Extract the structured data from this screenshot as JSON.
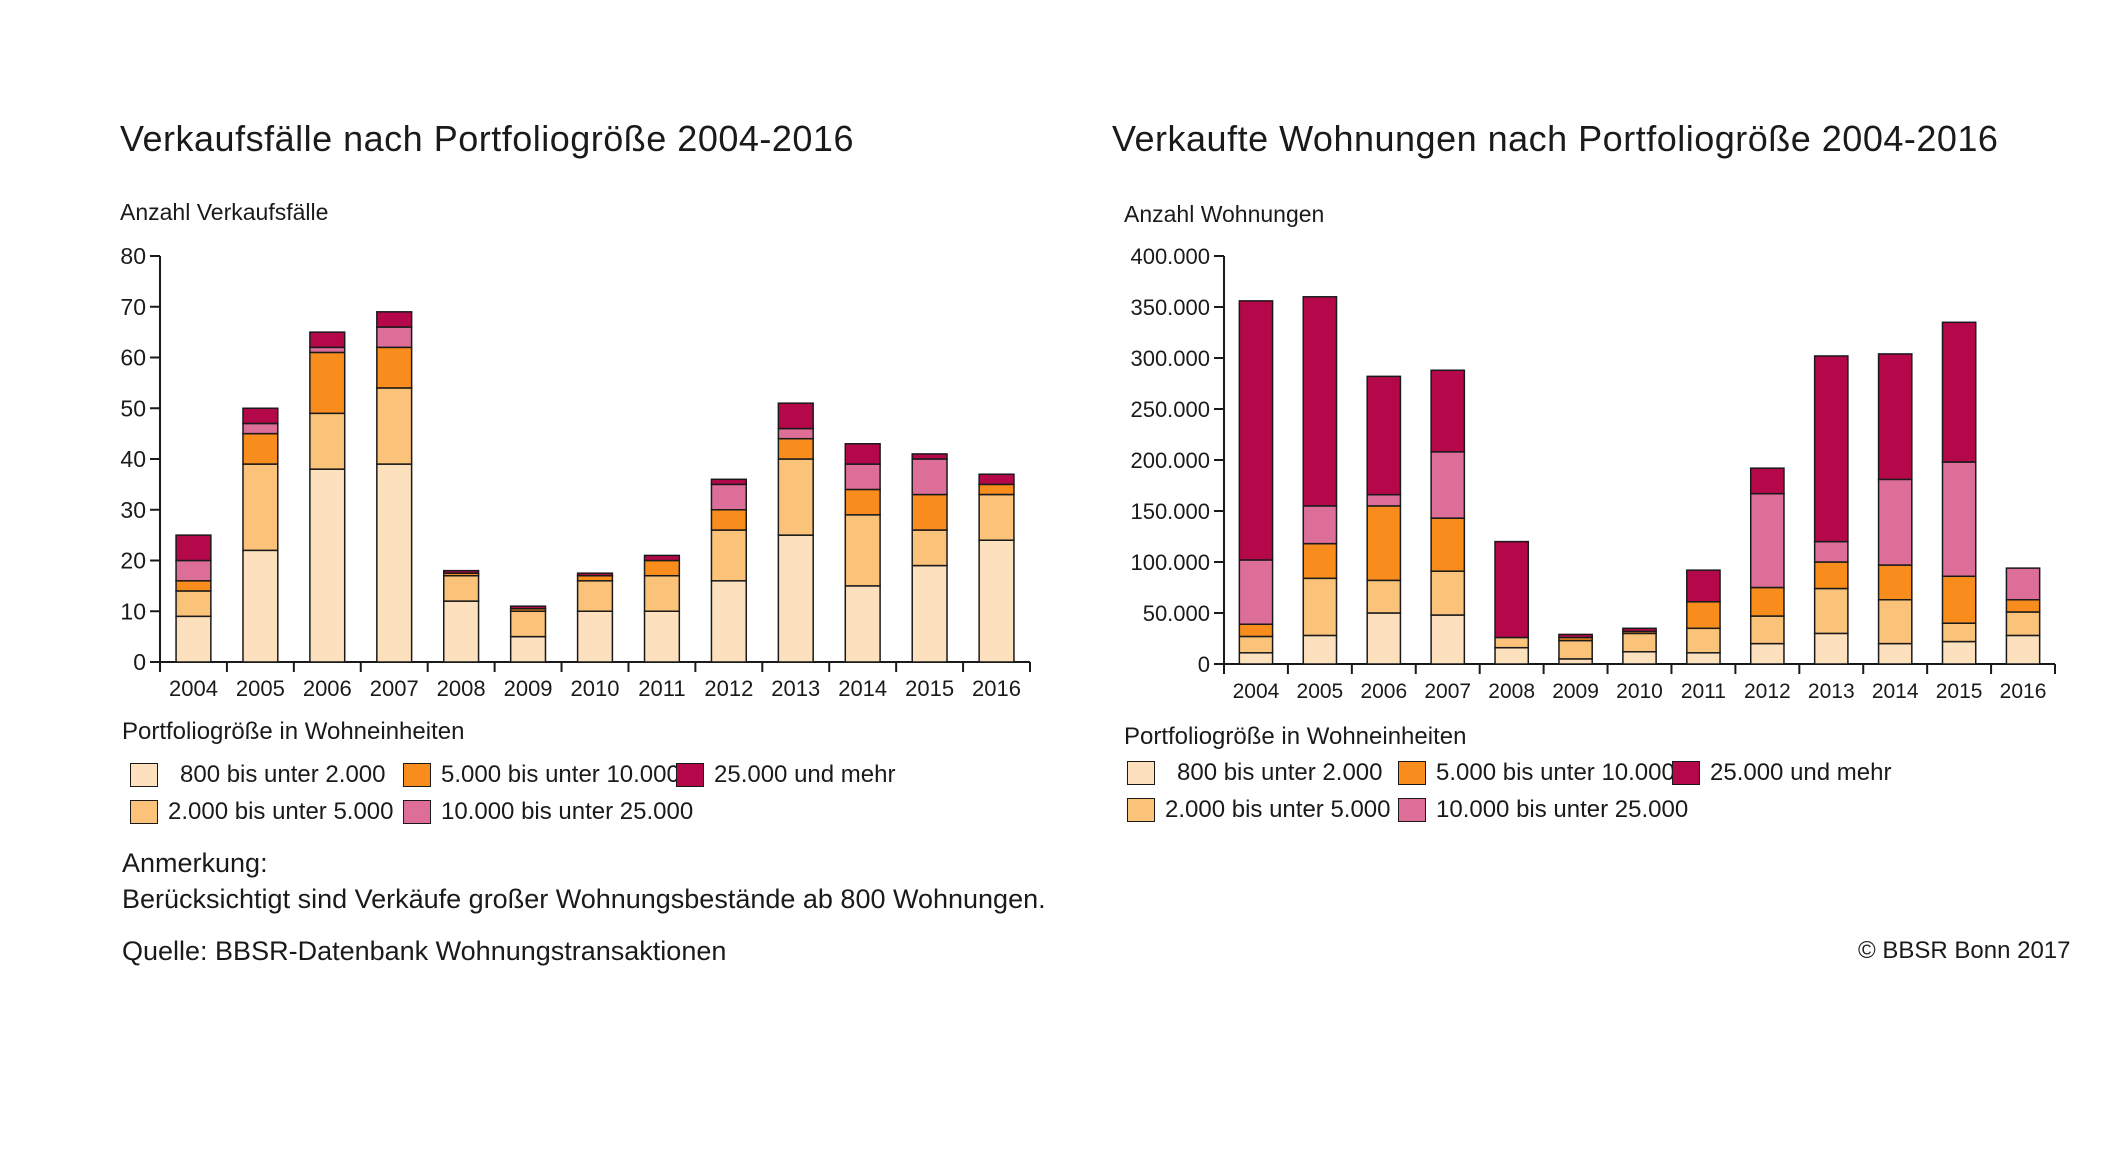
{
  "colors": {
    "800 bis unter 2.000": "#fde0bd",
    "2.000 bis unter 5.000": "#fbc27a",
    "5.000 bis unter 10.000": "#f88d1e",
    "10.000 bis unter 25.000": "#dc6e98",
    "25.000 und mehr": "#b5084a"
  },
  "left": {
    "title": "Verkaufsfälle nach Portfoliogröße 2004-2016",
    "legend_title": "Portfoliogröße in  Wohneinheiten",
    "note_heading": "Anmerkung:",
    "note_text": "Berücksichtigt sind Verkäufe großer Wohnungsbestände ab 800 Wohnungen.",
    "source": "Quelle: BBSR-Datenbank Wohnungstransaktionen"
  },
  "right": {
    "title": "Verkaufte Wohnungen nach Portfoliogröße 2004-2016",
    "legend_title": "Portfoliogröße in Wohneinheiten",
    "copyright": "© BBSR Bonn 2017"
  },
  "chart_data": [
    {
      "type": "bar",
      "stacked": true,
      "title": "Verkaufsfälle nach Portfoliogröße 2004-2016",
      "ylabel": "Anzahl Verkaufsfälle",
      "ylim": [
        0,
        80
      ],
      "yticks": [
        0,
        10,
        20,
        30,
        40,
        50,
        60,
        70,
        80
      ],
      "ytick_labels": [
        "0",
        "10",
        "20",
        "30",
        "40",
        "50",
        "60",
        "70",
        "80"
      ],
      "categories": [
        "2004",
        "2005",
        "2006",
        "2007",
        "2008",
        "2009",
        "2010",
        "2011",
        "2012",
        "2013",
        "2014",
        "2015",
        "2016"
      ],
      "series": [
        {
          "name": "800 bis unter 2.000",
          "values": [
            9,
            22,
            38,
            39,
            12,
            5,
            10,
            10,
            16,
            25,
            15,
            19,
            24
          ]
        },
        {
          "name": "2.000 bis unter 5.000",
          "values": [
            5,
            17,
            11,
            15,
            5,
            5,
            6,
            7,
            10,
            15,
            14,
            7,
            9
          ]
        },
        {
          "name": "5.000 bis unter 10.000",
          "values": [
            2,
            6,
            12,
            8,
            0.5,
            0.5,
            1,
            3,
            4,
            4,
            5,
            7,
            2
          ]
        },
        {
          "name": "10.000 bis unter 25.000",
          "values": [
            4,
            2,
            1,
            4,
            0,
            0,
            0,
            0,
            5,
            2,
            5,
            7,
            0
          ]
        },
        {
          "name": "25.000 und mehr",
          "values": [
            5,
            3,
            3,
            3,
            0.5,
            0.5,
            0.5,
            1,
            1,
            5,
            4,
            1,
            2
          ]
        }
      ],
      "legend_placement": "bottom"
    },
    {
      "type": "bar",
      "stacked": true,
      "title": "Verkaufte Wohnungen nach Portfoliogröße 2004-2016",
      "ylabel": "Anzahl Wohnungen",
      "ylim": [
        0,
        400000
      ],
      "yticks": [
        0,
        50000,
        100000,
        150000,
        200000,
        250000,
        300000,
        350000,
        400000
      ],
      "ytick_labels": [
        "0",
        "50.000",
        "100.000",
        "150.000",
        "200.000",
        "250.000",
        "300.000",
        "350.000",
        "400.000"
      ],
      "categories": [
        "2004",
        "2005",
        "2006",
        "2007",
        "2008",
        "2009",
        "2010",
        "2011",
        "2012",
        "2013",
        "2014",
        "2015",
        "2016"
      ],
      "series": [
        {
          "name": "800 bis unter 2.000",
          "values": [
            11000,
            28000,
            50000,
            48000,
            16000,
            5000,
            12000,
            11000,
            20000,
            30000,
            20000,
            22000,
            28000
          ]
        },
        {
          "name": "2.000 bis unter 5.000",
          "values": [
            16000,
            56000,
            32000,
            43000,
            10000,
            18000,
            18000,
            24000,
            27000,
            44000,
            43000,
            18000,
            23000
          ]
        },
        {
          "name": "5.000 bis unter 10.000",
          "values": [
            12000,
            34000,
            73000,
            52000,
            0,
            3000,
            2000,
            26000,
            28000,
            26000,
            34000,
            46000,
            12000
          ]
        },
        {
          "name": "10.000 bis unter 25.000",
          "values": [
            63000,
            37000,
            11000,
            65000,
            0,
            0,
            0,
            0,
            92000,
            20000,
            84000,
            112000,
            31000
          ]
        },
        {
          "name": "25.000 und mehr",
          "values": [
            254000,
            205000,
            116000,
            80000,
            94000,
            3000,
            3000,
            31000,
            25000,
            182000,
            123000,
            137000,
            0
          ]
        }
      ],
      "legend_placement": "bottom"
    }
  ]
}
